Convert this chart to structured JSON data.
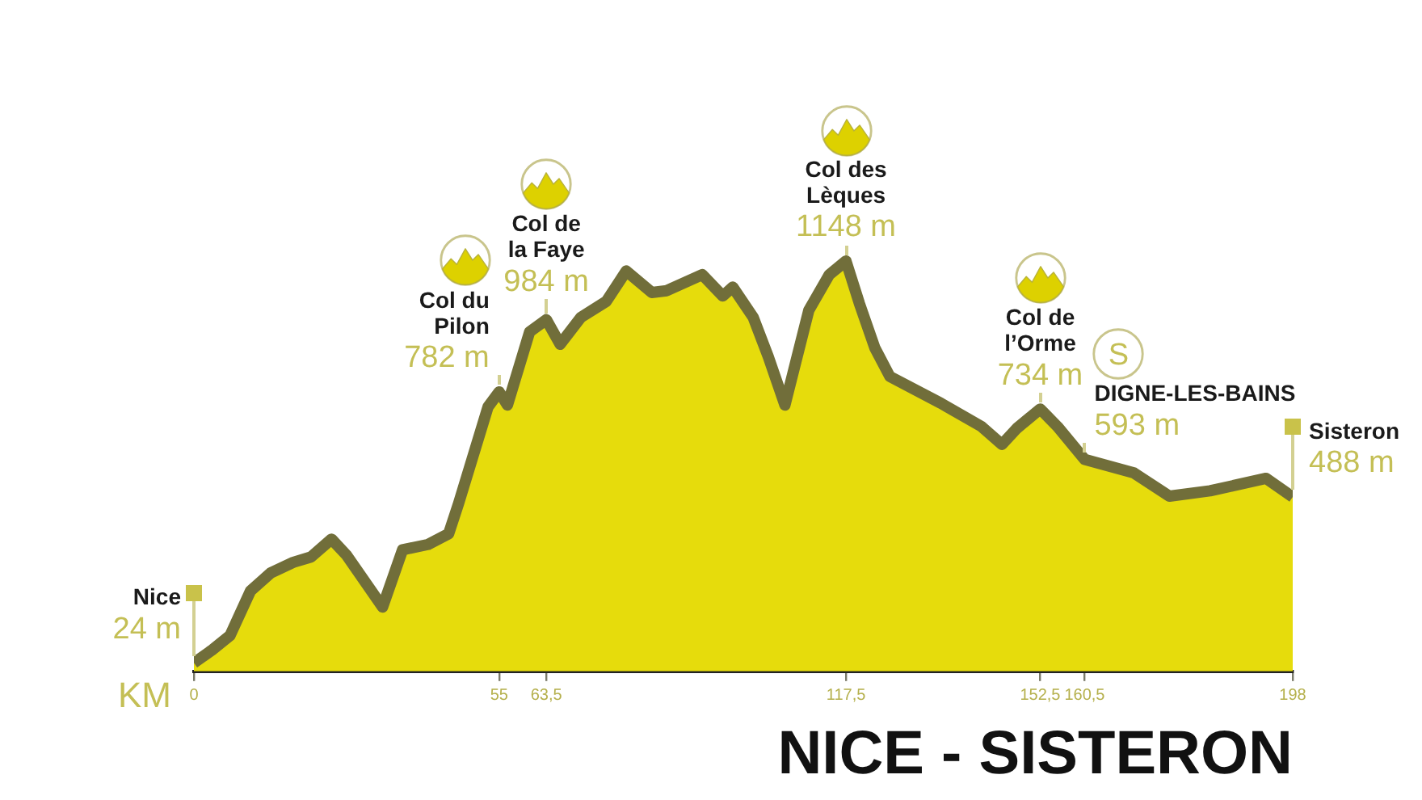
{
  "chart_data": {
    "type": "area",
    "title": "NICE - SISTERON",
    "xlabel": "KM",
    "x": [
      0,
      3.3,
      6.5,
      10.2,
      13.8,
      17.9,
      21.1,
      24.8,
      27.5,
      34,
      37.6,
      42.2,
      45.9,
      47.7,
      53,
      55,
      56.5,
      60.5,
      63.5,
      66,
      69.7,
      74.3,
      77.9,
      82.5,
      85.2,
      91.6,
      95.3,
      97.1,
      100.8,
      103.5,
      106.5,
      110.8,
      114.5,
      117.5,
      119.9,
      122.7,
      125.4,
      134.6,
      141.9,
      145.6,
      148.3,
      152.5,
      155.6,
      160.5,
      169.4,
      175.8,
      183.1,
      193.2,
      198
    ],
    "values": [
      24,
      60,
      100,
      225,
      275,
      305,
      320,
      370,
      325,
      180,
      340,
      355,
      385,
      470,
      740,
      782,
      745,
      950,
      984,
      915,
      990,
      1035,
      1120,
      1060,
      1065,
      1110,
      1050,
      1075,
      990,
      880,
      745,
      1010,
      1110,
      1148,
      1030,
      905,
      825,
      750,
      685,
      635,
      680,
      734,
      685,
      593,
      555,
      490,
      505,
      540,
      488
    ],
    "value_labels": [
      "24 m",
      null,
      null,
      null,
      null,
      null,
      null,
      null,
      null,
      null,
      null,
      null,
      null,
      null,
      null,
      "782 m",
      null,
      null,
      "984 m",
      null,
      null,
      null,
      null,
      null,
      null,
      null,
      null,
      null,
      null,
      null,
      null,
      null,
      null,
      "1148 m",
      null,
      null,
      null,
      null,
      null,
      null,
      null,
      "734 m",
      null,
      "593 m",
      null,
      null,
      null,
      null,
      "488 m"
    ],
    "color": "#e6dc0c",
    "xlim": [
      0,
      198
    ],
    "xticks": [
      0,
      55,
      {
        "value": 63.5,
        "label": "63,5"
      },
      {
        "value": 117.5,
        "label": "117,5"
      },
      {
        "value": 152.5,
        "label": "152,5"
      },
      {
        "value": 160.5,
        "label": "160,5"
      },
      198
    ],
    "tick_labels": "x",
    "marker": "none",
    "annotations": [
      {
        "text": "Nice",
        "x": 0,
        "y": 24
      },
      {
        "text": "Col du Pilon",
        "x": 55,
        "y": 782
      },
      {
        "text": "Col de la Faye",
        "x": 63.5,
        "y": 984
      },
      {
        "text": "Col des Lèques",
        "x": 117.5,
        "y": 1148
      },
      {
        "text": "Col de l’Orme",
        "x": 152.5,
        "y": 734
      },
      {
        "text": "DIGNE-LES-BAINS",
        "x": 160.5,
        "y": 593
      },
      {
        "text": "S",
        "x": 160.5,
        "y": 593
      },
      {
        "text": "Sisteron",
        "x": 198,
        "y": 488
      }
    ]
  }
}
